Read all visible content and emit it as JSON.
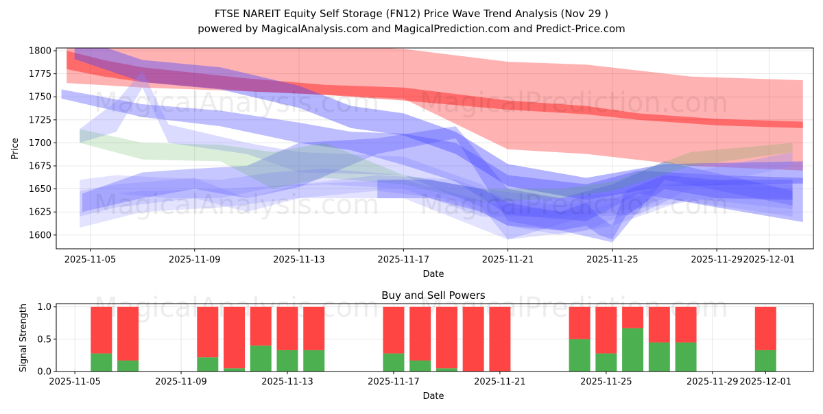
{
  "title_line1": "FTSE NAREIT Equity Self Storage (FN12) Price Wave Trend Analysis (Nov 29 )",
  "title_line2": "powered by MagicalAnalysis.com and MagicalPrediction.com and Predict-Price.com",
  "watermarks": [
    "MagicalAnalysis.com",
    "MagicalPrediction.com"
  ],
  "chart_data": [
    {
      "type": "area",
      "title": "",
      "xlabel": "Date",
      "ylabel": "Price",
      "x_origin": "2025-11-05",
      "x_unit": "days since 2025-11-05",
      "xlim": [
        -1.3,
        27.7
      ],
      "ylim": [
        1585,
        1803
      ],
      "yticks": [
        1600,
        1625,
        1650,
        1675,
        1700,
        1725,
        1750,
        1775,
        1800
      ],
      "xticks": [
        {
          "day": 0,
          "label": "2025-11-05"
        },
        {
          "day": 4,
          "label": "2025-11-09"
        },
        {
          "day": 8,
          "label": "2025-11-13"
        },
        {
          "day": 12,
          "label": "2025-11-17"
        },
        {
          "day": 16,
          "label": "2025-11-21"
        },
        {
          "day": 20,
          "label": "2025-11-25"
        },
        {
          "day": 24,
          "label": "2025-11-29"
        },
        {
          "day": 26,
          "label": "2025-12-01"
        }
      ],
      "grid": true,
      "bands": [
        {
          "name": "red-wide",
          "color": "#ff0000",
          "opacity": 0.3,
          "x": [
            -0.9,
            2,
            7,
            12,
            16,
            19,
            23,
            27.3
          ],
          "upper": [
            1815,
            1812,
            1808,
            1802,
            1788,
            1785,
            1772,
            1768
          ],
          "lower": [
            1765,
            1760,
            1755,
            1748,
            1693,
            1688,
            1675,
            1670
          ]
        },
        {
          "name": "red-trend",
          "color": "#ff0000",
          "opacity": 0.4,
          "x": [
            -0.9,
            0.5,
            2,
            6,
            9,
            12,
            16,
            19,
            21,
            24,
            27.3
          ],
          "upper": [
            1800,
            1790,
            1782,
            1770,
            1763,
            1760,
            1746,
            1740,
            1732,
            1726,
            1723
          ],
          "lower": [
            1780,
            1772,
            1766,
            1756,
            1752,
            1746,
            1736,
            1731,
            1725,
            1719,
            1716
          ]
        },
        {
          "name": "purple-band",
          "color": "#4444ff",
          "opacity": 0.4,
          "x": [
            -0.6,
            2,
            5,
            8,
            10,
            12,
            14,
            16,
            19,
            22,
            27.3
          ],
          "upper": [
            1803,
            1778,
            1770,
            1750,
            1728,
            1720,
            1700,
            1665,
            1650,
            1665,
            1668
          ]
        },
        {
          "name": "blue-band-1",
          "color": "#4444ff",
          "opacity": 0.35,
          "x": [
            -1.1,
            2,
            5,
            8,
            10,
            12,
            14,
            16,
            19,
            21,
            24,
            27.3
          ],
          "upper": [
            1758,
            1742,
            1735,
            1722,
            1712,
            1710,
            1700,
            1665,
            1655,
            1670,
            1665,
            1662
          ],
          "lower": [
            1748,
            1728,
            1718,
            1700,
            1692,
            1676,
            1658,
            1622,
            1615,
            1645,
            1630,
            1614
          ]
        },
        {
          "name": "blue-band-2",
          "color": "#4444ff",
          "opacity": 0.3,
          "x": [
            -0.3,
            2,
            4,
            6,
            8,
            11,
            14,
            16,
            18,
            20,
            22,
            26.9
          ],
          "upper": [
            1645,
            1668,
            1672,
            1675,
            1700,
            1705,
            1718,
            1650,
            1640,
            1655,
            1680,
            1648
          ],
          "lower": [
            1625,
            1640,
            1650,
            1640,
            1652,
            1688,
            1705,
            1615,
            1605,
            1592,
            1660,
            1632
          ]
        },
        {
          "name": "blue-band-3",
          "color": "#8888ff",
          "opacity": 0.3,
          "x": [
            -0.4,
            1,
            2,
            3,
            6,
            8,
            12,
            15,
            16,
            19,
            21,
            23,
            26.9
          ],
          "upper": [
            1715,
            1745,
            1778,
            1720,
            1700,
            1690,
            1685,
            1655,
            1625,
            1640,
            1642,
            1668,
            1690
          ],
          "lower": [
            1700,
            1712,
            1760,
            1700,
            1688,
            1668,
            1665,
            1630,
            1595,
            1620,
            1622,
            1650,
            1675
          ]
        },
        {
          "name": "green-band",
          "color": "#44aa44",
          "opacity": 0.2,
          "x": [
            -0.4,
            2,
            5,
            7,
            9,
            12,
            15,
            18,
            20,
            23,
            26.9
          ],
          "upper": [
            1715,
            1700,
            1698,
            1690,
            1700,
            1665,
            1650,
            1650,
            1658,
            1690,
            1700
          ],
          "lower": [
            1700,
            1682,
            1680,
            1650,
            1662,
            1655,
            1635,
            1640,
            1648,
            1675,
            1690
          ]
        },
        {
          "name": "light-blue-1",
          "color": "#6666ff",
          "opacity": 0.18,
          "x": [
            -0.4,
            1,
            4,
            6,
            8,
            12,
            16,
            19,
            22,
            26.9
          ],
          "upper": [
            1648,
            1655,
            1662,
            1640,
            1655,
            1660,
            1630,
            1625,
            1655,
            1655
          ],
          "lower": [
            1620,
            1630,
            1640,
            1625,
            1640,
            1640,
            1595,
            1605,
            1640,
            1620
          ]
        },
        {
          "name": "light-blue-2",
          "color": "#6666ff",
          "opacity": 0.18,
          "x": [
            -0.4,
            1,
            3,
            5,
            7,
            9,
            12,
            15,
            18,
            20,
            24,
            26.9
          ],
          "upper": [
            1660,
            1665,
            1662,
            1660,
            1668,
            1672,
            1665,
            1650,
            1640,
            1645,
            1660,
            1655
          ],
          "lower": [
            1640,
            1645,
            1640,
            1640,
            1652,
            1655,
            1650,
            1620,
            1620,
            1625,
            1640,
            1640
          ]
        },
        {
          "name": "light-blue-3",
          "color": "#6666ff",
          "opacity": 0.18,
          "x": [
            -0.4,
            2,
            5,
            8,
            11,
            14,
            16,
            18,
            20,
            23,
            26.9
          ],
          "upper": [
            1640,
            1648,
            1650,
            1655,
            1665,
            1660,
            1640,
            1632,
            1640,
            1660,
            1650
          ],
          "lower": [
            1608,
            1625,
            1630,
            1640,
            1648,
            1638,
            1610,
            1600,
            1610,
            1640,
            1628
          ]
        },
        {
          "name": "blue-dark-lower",
          "color": "#4444ff",
          "opacity": 0.3,
          "x": [
            11,
            13,
            15,
            16,
            18,
            19,
            19.5,
            20,
            20.5,
            22,
            24,
            26.9
          ],
          "upper": [
            1660,
            1660,
            1650,
            1635,
            1625,
            1635,
            1620,
            1610,
            1648,
            1665,
            1660,
            1660
          ],
          "lower": [
            1640,
            1640,
            1625,
            1610,
            1605,
            1610,
            1600,
            1595,
            1620,
            1650,
            1640,
            1638
          ]
        }
      ]
    },
    {
      "type": "bar",
      "title": "Buy and Sell Powers",
      "xlabel": "Date",
      "ylabel": "Signal Strength",
      "ylim": [
        0,
        1.05
      ],
      "yticks": [
        {
          "v": 0.0,
          "label": "0.0"
        },
        {
          "v": 0.5,
          "label": "0.5"
        },
        {
          "v": 1.0,
          "label": "1.0"
        }
      ],
      "xlim": [
        -0.7,
        27.8
      ],
      "xticks": [
        {
          "day": 0,
          "label": "2025-11-05"
        },
        {
          "day": 4,
          "label": "2025-11-09"
        },
        {
          "day": 8,
          "label": "2025-11-13"
        },
        {
          "day": 12,
          "label": "2025-11-17"
        },
        {
          "day": 16,
          "label": "2025-11-21"
        },
        {
          "day": 20,
          "label": "2025-11-25"
        },
        {
          "day": 24,
          "label": "2025-11-29"
        },
        {
          "day": 26,
          "label": "2025-12-01"
        }
      ],
      "series_colors": {
        "buy": "#4caf50",
        "sell": "#ff4444"
      },
      "days": [
        1,
        2,
        5,
        6,
        7,
        8,
        9,
        12,
        13,
        14,
        15,
        16,
        19,
        20,
        21,
        22,
        23,
        26
      ],
      "buy": [
        0.28,
        0.17,
        0.22,
        0.05,
        0.4,
        0.33,
        0.33,
        0.28,
        0.17,
        0.05,
        0.0,
        0.0,
        0.5,
        0.28,
        0.67,
        0.45,
        0.45,
        0.33
      ],
      "sell": [
        0.72,
        0.83,
        0.78,
        0.95,
        0.6,
        0.67,
        0.67,
        0.72,
        0.83,
        0.95,
        1.0,
        1.0,
        0.5,
        0.72,
        0.33,
        0.55,
        0.55,
        0.67
      ]
    }
  ]
}
